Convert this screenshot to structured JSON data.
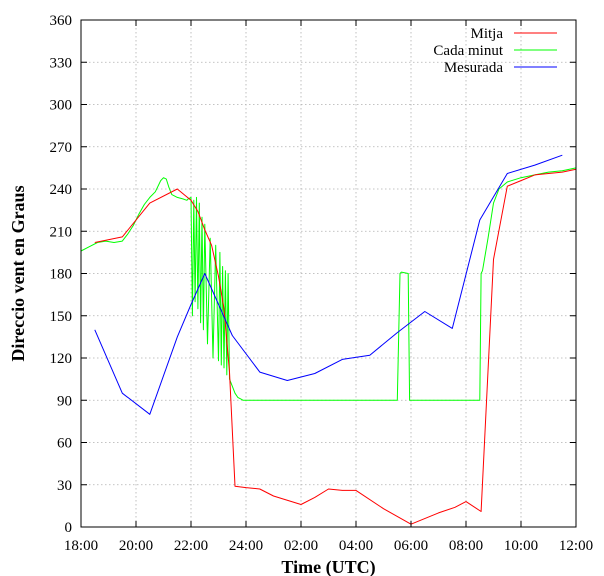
{
  "chart_data": {
    "type": "line",
    "xlabel": "Time (UTC)",
    "ylabel": "Direccio vent en Graus",
    "x_unit": "hours (18:00 of day 1 to 12:00 of day 2)",
    "xlim": [
      18,
      36
    ],
    "ylim": [
      0,
      360
    ],
    "x_ticks": [
      18,
      20,
      22,
      24,
      26,
      28,
      30,
      32,
      34,
      36
    ],
    "x_tick_labels": [
      "18:00",
      "20:00",
      "22:00",
      "24:00",
      "02:00",
      "04:00",
      "06:00",
      "08:00",
      "10:00",
      "12:00"
    ],
    "y_ticks": [
      0,
      30,
      60,
      90,
      120,
      150,
      180,
      210,
      240,
      270,
      300,
      330,
      360
    ],
    "grid": true,
    "legend_position": "top-right",
    "series": [
      {
        "name": "Mitja",
        "color": "#ff0000",
        "x": [
          18.5,
          19.5,
          20.5,
          21.5,
          21.75,
          22.0,
          22.25,
          22.5,
          22.75,
          23.0,
          23.2,
          23.4,
          23.6,
          24.0,
          24.5,
          25.0,
          26.0,
          26.5,
          27.0,
          27.5,
          28.0,
          29.0,
          30.0,
          31.0,
          31.6,
          32.0,
          32.55,
          33.0,
          33.5,
          34.0,
          34.5,
          35.0,
          35.5,
          36.0
        ],
        "y": [
          202,
          206,
          230,
          240,
          236,
          232,
          224,
          211,
          200,
          178,
          155,
          110,
          29,
          28,
          27,
          22,
          16,
          21,
          27,
          26,
          26,
          13,
          2,
          10,
          14,
          18,
          11,
          190,
          242,
          246,
          250,
          251,
          252,
          254
        ]
      },
      {
        "name": "Cada minut",
        "color": "#00ff00",
        "x": [
          18.0,
          18.3,
          18.6,
          18.9,
          19.2,
          19.5,
          19.7,
          19.9,
          20.1,
          20.3,
          20.5,
          20.7,
          20.9,
          21.0,
          21.1,
          21.2,
          21.3,
          21.5,
          21.7,
          21.85,
          21.9,
          22.0,
          22.05,
          22.1,
          22.15,
          22.2,
          22.25,
          22.3,
          22.35,
          22.4,
          22.45,
          22.5,
          22.6,
          22.7,
          22.8,
          22.9,
          23.0,
          23.05,
          23.1,
          23.15,
          23.2,
          23.25,
          23.3,
          23.35,
          23.4,
          23.5,
          23.6,
          23.7,
          23.8,
          23.9,
          24.0,
          25.0,
          26.0,
          27.0,
          28.0,
          29.0,
          29.5,
          29.6,
          29.65,
          29.9,
          29.95,
          30.0,
          31.0,
          32.0,
          32.5,
          32.55,
          32.6,
          32.8,
          33.0,
          33.2,
          33.5,
          34.0,
          34.5,
          35.0,
          35.5,
          36.0
        ],
        "y": [
          196,
          199,
          202,
          203,
          202,
          203,
          208,
          214,
          222,
          229,
          234,
          238,
          246,
          248,
          247,
          241,
          236,
          234,
          233,
          232,
          233,
          234,
          150,
          232,
          160,
          234,
          155,
          230,
          145,
          220,
          140,
          215,
          130,
          205,
          120,
          200,
          118,
          195,
          115,
          185,
          113,
          182,
          108,
          180,
          105,
          100,
          95,
          92,
          91,
          90,
          90,
          90,
          90,
          90,
          90,
          90,
          90,
          180,
          181,
          180,
          90,
          90,
          90,
          90,
          90,
          180,
          182,
          205,
          230,
          240,
          245,
          248,
          250,
          252,
          253,
          255
        ]
      },
      {
        "name": "Mesurada",
        "color": "#0000ff",
        "x": [
          18.5,
          19.5,
          20.5,
          21.5,
          22.0,
          22.5,
          23.5,
          24.5,
          25.5,
          26.5,
          27.5,
          28.5,
          29.5,
          30.5,
          31.5,
          32.5,
          33.5,
          34.5,
          35.5
        ],
        "y": [
          140,
          95,
          80,
          135,
          158,
          180,
          136,
          110,
          104,
          109,
          119,
          122,
          138,
          153,
          141,
          218,
          251,
          257,
          264
        ]
      }
    ]
  }
}
